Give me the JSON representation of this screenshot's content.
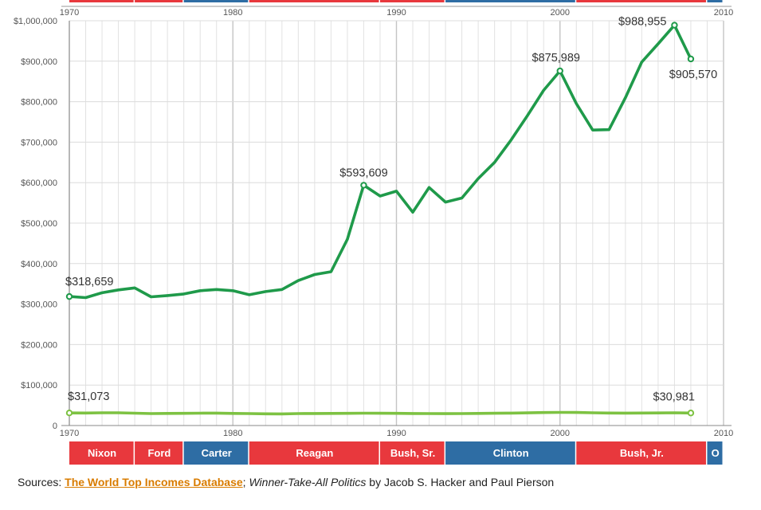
{
  "chart_data": {
    "type": "line",
    "x": [
      1970,
      1971,
      1972,
      1973,
      1974,
      1975,
      1976,
      1977,
      1978,
      1979,
      1980,
      1981,
      1982,
      1983,
      1984,
      1985,
      1986,
      1987,
      1988,
      1989,
      1990,
      1991,
      1992,
      1993,
      1994,
      1995,
      1996,
      1997,
      1998,
      1999,
      2000,
      2001,
      2002,
      2003,
      2004,
      2005,
      2006,
      2007,
      2008
    ],
    "xlim": [
      1970,
      2010
    ],
    "ylim": [
      0,
      1000000
    ],
    "x_ticks": [
      "1970",
      "1980",
      "1990",
      "2000",
      "2010"
    ],
    "y_ticks": [
      "0",
      "$100,000",
      "$200,000",
      "$300,000",
      "$400,000",
      "$500,000",
      "$600,000",
      "$700,000",
      "$800,000",
      "$900,000",
      "$1,000,000"
    ],
    "grid": true,
    "series": [
      {
        "color": "#1f9a4a",
        "values": [
          318659,
          316000,
          328000,
          335000,
          340000,
          318000,
          321000,
          325000,
          333000,
          336000,
          333000,
          323000,
          331000,
          336000,
          358000,
          373000,
          380000,
          460000,
          593609,
          567000,
          579000,
          527000,
          588000,
          552000,
          562000,
          610000,
          650000,
          705000,
          765000,
          828000,
          875989,
          795000,
          730000,
          731000,
          810000,
          898000,
          943000,
          988955,
          905570
        ]
      },
      {
        "color": "#7dc242",
        "values": [
          31073,
          31000,
          31500,
          31500,
          30500,
          29500,
          30000,
          30200,
          30500,
          30800,
          30000,
          29500,
          29000,
          28800,
          29500,
          29800,
          30000,
          30200,
          30500,
          30300,
          30200,
          29800,
          29500,
          29300,
          29500,
          30000,
          30400,
          30800,
          31300,
          32000,
          32500,
          32200,
          31500,
          31000,
          30800,
          31000,
          31200,
          31500,
          30981
        ]
      }
    ],
    "annotations": [
      {
        "series": 0,
        "x": 1970,
        "text": "$318,659"
      },
      {
        "series": 0,
        "x": 1988,
        "text": "$593,609"
      },
      {
        "series": 0,
        "x": 2000,
        "text": "$875,989"
      },
      {
        "series": 0,
        "x": 2007,
        "text": "$988,955"
      },
      {
        "series": 0,
        "x": 2008,
        "text": "$905,570"
      },
      {
        "series": 1,
        "x": 1970,
        "text": "$31,073"
      },
      {
        "series": 1,
        "x": 2008,
        "text": "$30,981"
      }
    ],
    "presidents": [
      {
        "name": "Nixon",
        "start": 1970,
        "end": 1974,
        "color": "#e8383d"
      },
      {
        "name": "Ford",
        "start": 1974,
        "end": 1977,
        "color": "#e8383d"
      },
      {
        "name": "Carter",
        "start": 1977,
        "end": 1981,
        "color": "#2e6da4"
      },
      {
        "name": "Reagan",
        "start": 1981,
        "end": 1989,
        "color": "#e8383d"
      },
      {
        "name": "Bush, Sr.",
        "start": 1989,
        "end": 1993,
        "color": "#e8383d"
      },
      {
        "name": "Clinton",
        "start": 1993,
        "end": 2001,
        "color": "#2e6da4"
      },
      {
        "name": "Bush, Jr.",
        "start": 2001,
        "end": 2009,
        "color": "#e8383d"
      },
      {
        "name": "O",
        "start": 2009,
        "end": 2010,
        "color": "#2e6da4"
      }
    ]
  },
  "sources": {
    "prefix": "Sources: ",
    "link": "The World Top Incomes Database",
    "sep": "; ",
    "book": "Winner-Take-All Politics",
    "suffix": " by Jacob S. Hacker and Paul Pierson"
  }
}
